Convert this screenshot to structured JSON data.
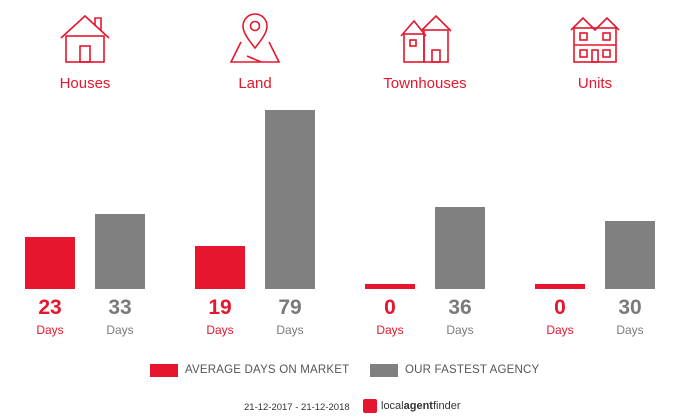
{
  "chart_data": {
    "type": "bar",
    "categories": [
      "Houses",
      "Land",
      "Townhouses",
      "Units"
    ],
    "series": [
      {
        "name": "AVERAGE DAYS ON MARKET",
        "values": [
          23,
          19,
          0,
          0
        ],
        "color": "#e5162d"
      },
      {
        "name": "OUR FASTEST AGENCY",
        "values": [
          33,
          79,
          36,
          30
        ],
        "color": "#808080"
      }
    ],
    "value_unit": "Days",
    "ylim": [
      0,
      79
    ],
    "grid": false,
    "legend_position": "bottom"
  },
  "icons": [
    "house-icon",
    "map-pin-icon",
    "townhouses-icon",
    "units-icon"
  ],
  "footer": {
    "date_range": "21-12-2017 - 21-12-2018",
    "brand_prefix": "local",
    "brand_bold": "agent",
    "brand_suffix": "finder"
  }
}
